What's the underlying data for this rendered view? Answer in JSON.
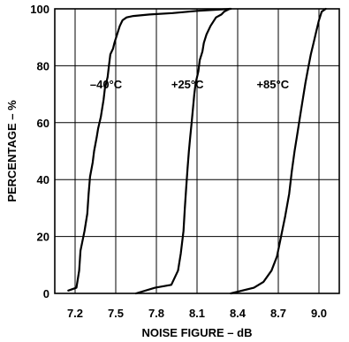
{
  "chart_data": {
    "type": "line",
    "title": "",
    "xlabel": "NOISE FIGURE – dB",
    "ylabel": "PERCENTAGE – %",
    "xlim": [
      7.05,
      9.15
    ],
    "ylim": [
      0,
      100
    ],
    "xticks": [
      7.2,
      7.5,
      7.8,
      8.1,
      8.4,
      8.7,
      9.0
    ],
    "xtick_labels": [
      "7.2",
      "7.5",
      "7.8",
      "8.1",
      "8.4",
      "8.7",
      "9.0"
    ],
    "yticks": [
      0,
      20,
      40,
      60,
      80,
      100
    ],
    "ytick_labels": [
      "0",
      "20",
      "40",
      "60",
      "80",
      "100"
    ],
    "grid": true,
    "legend": "none",
    "series": [
      {
        "label_text": "–40°C",
        "x": [
          7.15,
          7.21,
          7.23,
          7.24,
          7.27,
          7.29,
          7.3,
          7.31,
          7.33,
          7.34,
          7.36,
          7.37,
          7.39,
          7.41,
          7.42,
          7.44,
          7.45,
          7.46,
          7.48,
          7.49,
          7.51,
          7.53,
          7.55,
          7.58,
          7.63,
          7.75,
          7.92,
          8.1,
          8.35
        ],
        "y": [
          1,
          2,
          8,
          15,
          22,
          28,
          35,
          41,
          46,
          50,
          55,
          58,
          62,
          68,
          72,
          76,
          80,
          84,
          86,
          88,
          91,
          94,
          96,
          97,
          97.5,
          98,
          98.5,
          99.3,
          100
        ]
      },
      {
        "label_text": "+25°C",
        "x": [
          7.65,
          7.79,
          7.91,
          7.96,
          7.98,
          8.0,
          8.01,
          8.02,
          8.03,
          8.04,
          8.05,
          8.06,
          8.07,
          8.08,
          8.09,
          8.11,
          8.12,
          8.14,
          8.15,
          8.17,
          8.2,
          8.24,
          8.28,
          8.3,
          8.34
        ],
        "y": [
          0,
          2,
          3,
          8,
          14,
          22,
          30,
          37,
          44,
          50,
          55,
          60,
          65,
          70,
          74,
          78,
          82,
          85,
          88,
          91,
          94,
          97,
          98,
          99,
          100
        ]
      },
      {
        "label_text": "+85°C",
        "x": [
          8.35,
          8.52,
          8.59,
          8.65,
          8.69,
          8.72,
          8.75,
          8.78,
          8.8,
          8.82,
          8.84,
          8.86,
          8.88,
          8.9,
          8.92,
          8.94,
          8.96,
          8.98,
          9.0,
          9.02,
          9.05
        ],
        "y": [
          0,
          2,
          4,
          8,
          13,
          20,
          27,
          35,
          43,
          50,
          56,
          62,
          68,
          74,
          79,
          84,
          88,
          92,
          96,
          99,
          100
        ]
      }
    ],
    "annotations": [
      {
        "text": "–40°C",
        "x": 7.31,
        "y": 72
      },
      {
        "text": "+25°C",
        "x": 7.91,
        "y": 72
      },
      {
        "text": "+85°C",
        "x": 8.54,
        "y": 72
      }
    ]
  }
}
